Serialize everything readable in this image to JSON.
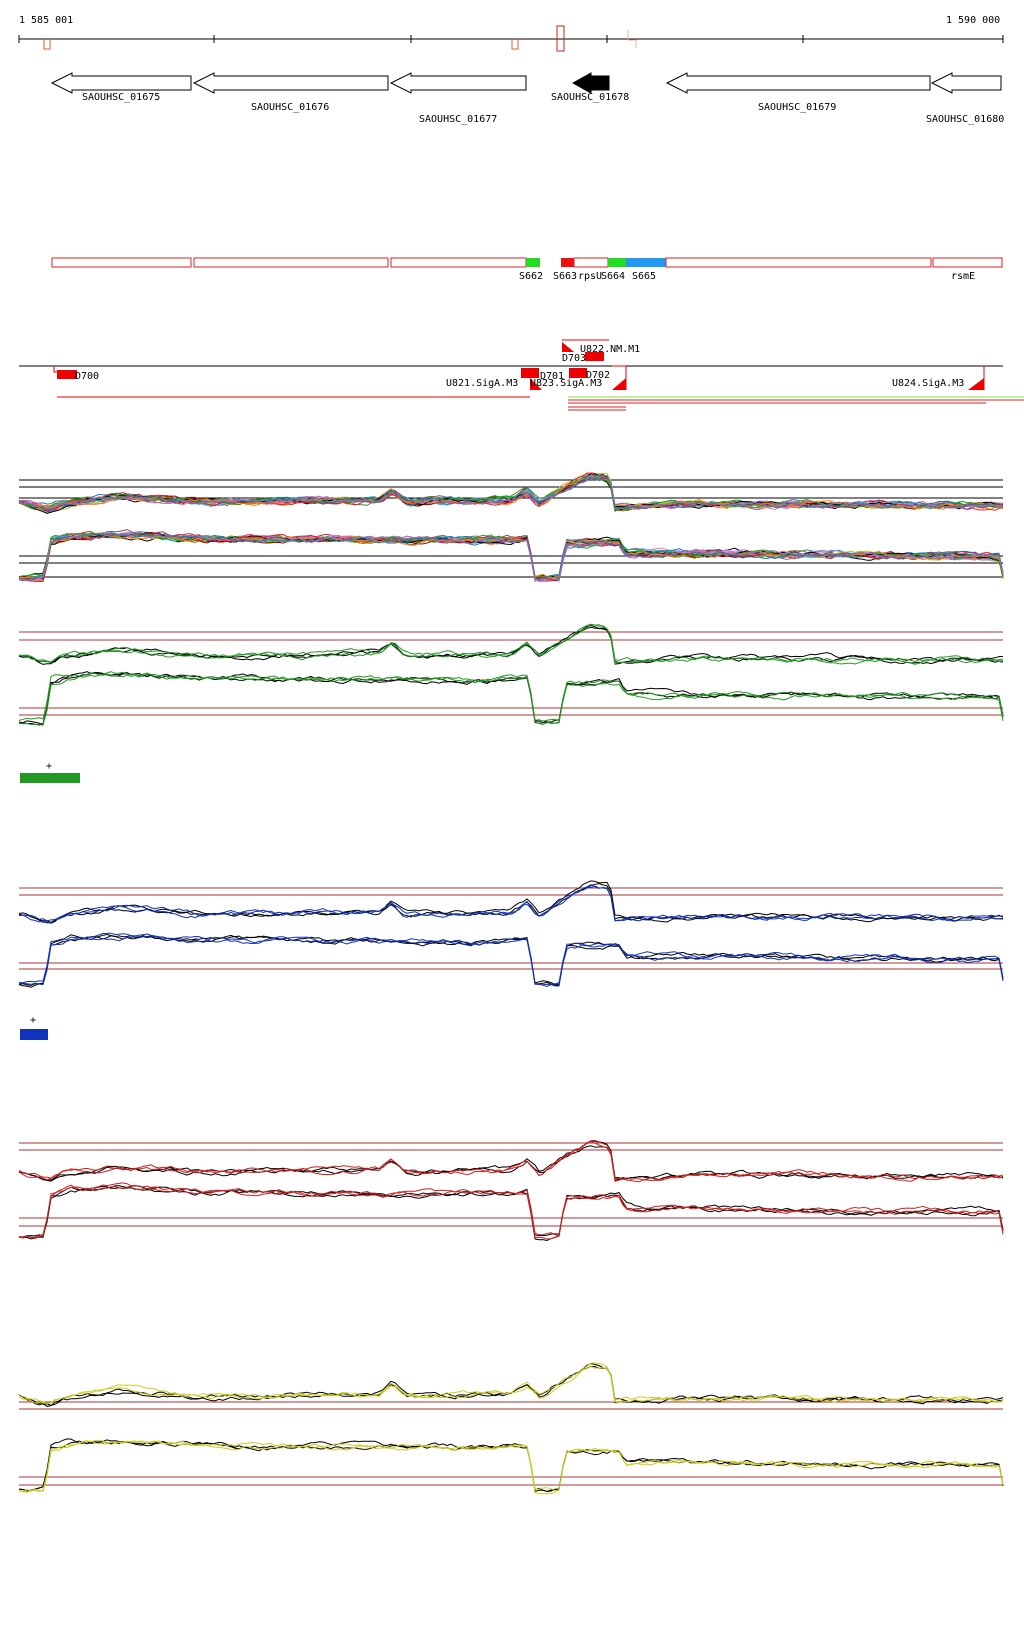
{
  "ruler": {
    "start_label": "1 585 001",
    "end_label": "1 590 000",
    "start": 1585001,
    "end": 1590000
  },
  "genes": [
    {
      "name": "SAOUHSC_01675",
      "strand": "-",
      "filled": false
    },
    {
      "name": "SAOUHSC_01676",
      "strand": "-",
      "filled": false
    },
    {
      "name": "SAOUHSC_01677",
      "strand": "-",
      "filled": false
    },
    {
      "name": "SAOUHSC_01678",
      "strand": "-",
      "filled": true
    },
    {
      "name": "SAOUHSC_01679",
      "strand": "-",
      "filled": false
    },
    {
      "name": "SAOUHSC_01680",
      "strand": "-",
      "filled": false
    }
  ],
  "segments": [
    {
      "label": "",
      "color": "#ffffff"
    },
    {
      "label": "",
      "color": "#ffffff"
    },
    {
      "label": "",
      "color": "#ffffff"
    },
    {
      "label": "S662",
      "color": "#22dd22"
    },
    {
      "label": "S663",
      "color": "#ee1111"
    },
    {
      "label": "rpsU",
      "color": "#ffffff"
    },
    {
      "label": "S664",
      "color": "#22dd22"
    },
    {
      "label": "S665",
      "color": "#2299ee"
    },
    {
      "label": "",
      "color": "#ffffff"
    },
    {
      "label": "rsmE",
      "color": "#ffffff"
    }
  ],
  "features": [
    {
      "label": "D700"
    },
    {
      "label": "D701"
    },
    {
      "label": "D702"
    },
    {
      "label": "D703"
    },
    {
      "label": "U821.SigA.M3"
    },
    {
      "label": "U822.NM.M1"
    },
    {
      "label": "U823.SigA.M3"
    },
    {
      "label": "U824.SigA.M3"
    }
  ],
  "tracks": [
    {
      "name": "all-conditions",
      "series_colors": [
        "#000000",
        "#d62728",
        "#2ca02c",
        "#ff7f0e",
        "#1f77b4",
        "#9467bd",
        "#8c564b",
        "#e377c2",
        "#bcbd22",
        "#17becf",
        "#aa0000",
        "#00aa00",
        "#8888ff",
        "#ff66aa"
      ]
    },
    {
      "name": "green-condition",
      "accent": "#229922",
      "legend": "+"
    },
    {
      "name": "blue-condition",
      "accent": "#1133bb",
      "legend": "+"
    },
    {
      "name": "red-condition",
      "accent": "#cc2222",
      "legend": ""
    },
    {
      "name": "yellow-condition",
      "accent": "#cccc22",
      "legend": ""
    }
  ]
}
